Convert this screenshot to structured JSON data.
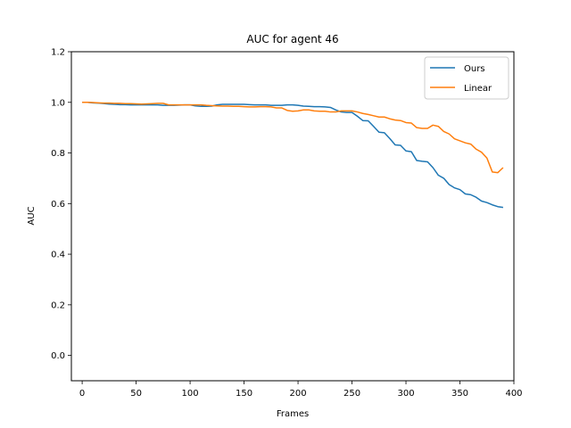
{
  "chart_data": {
    "type": "line",
    "title": "AUC for agent 46",
    "xlabel": "Frames",
    "ylabel": "AUC",
    "xlim": [
      -10,
      400
    ],
    "ylim": [
      -0.1,
      1.2
    ],
    "xticks": [
      0,
      50,
      100,
      150,
      200,
      250,
      300,
      350,
      400
    ],
    "yticks": [
      0.0,
      0.2,
      0.4,
      0.6,
      0.8,
      1.0,
      1.2
    ],
    "grid": false,
    "legend_position": "top-right",
    "x": [
      0,
      5,
      10,
      15,
      20,
      25,
      30,
      35,
      40,
      45,
      50,
      55,
      60,
      65,
      70,
      75,
      80,
      85,
      90,
      95,
      100,
      105,
      110,
      115,
      120,
      125,
      130,
      135,
      140,
      145,
      150,
      155,
      160,
      165,
      170,
      175,
      180,
      185,
      190,
      195,
      200,
      205,
      210,
      215,
      220,
      225,
      230,
      235,
      240,
      245,
      250,
      255,
      260,
      265,
      270,
      275,
      280,
      285,
      290,
      295,
      300,
      305,
      310,
      315,
      320,
      325,
      330,
      335,
      340,
      345,
      350,
      355,
      360,
      365,
      370,
      375,
      380,
      385,
      390
    ],
    "series": [
      {
        "name": "Ours",
        "color": "#1f77b4",
        "values": [
          1.0,
          1.0,
          0.998,
          0.997,
          0.995,
          0.993,
          0.992,
          0.991,
          0.991,
          0.99,
          0.99,
          0.99,
          0.99,
          0.99,
          0.99,
          0.988,
          0.988,
          0.988,
          0.989,
          0.99,
          0.99,
          0.986,
          0.984,
          0.984,
          0.985,
          0.99,
          0.992,
          0.992,
          0.992,
          0.992,
          0.992,
          0.991,
          0.99,
          0.99,
          0.99,
          0.988,
          0.988,
          0.988,
          0.99,
          0.99,
          0.988,
          0.985,
          0.984,
          0.983,
          0.983,
          0.982,
          0.98,
          0.97,
          0.962,
          0.96,
          0.96,
          0.945,
          0.928,
          0.927,
          0.905,
          0.882,
          0.88,
          0.857,
          0.832,
          0.83,
          0.808,
          0.805,
          0.77,
          0.767,
          0.765,
          0.742,
          0.712,
          0.7,
          0.675,
          0.662,
          0.655,
          0.638,
          0.635,
          0.625,
          0.61,
          0.604,
          0.595,
          0.588,
          0.585
        ]
      },
      {
        "name": "Linear",
        "color": "#ff7f0e",
        "values": [
          1.0,
          1.0,
          0.999,
          0.998,
          0.997,
          0.997,
          0.996,
          0.996,
          0.995,
          0.995,
          0.994,
          0.993,
          0.994,
          0.995,
          0.996,
          0.996,
          0.99,
          0.99,
          0.99,
          0.99,
          0.99,
          0.99,
          0.99,
          0.988,
          0.987,
          0.986,
          0.985,
          0.985,
          0.984,
          0.984,
          0.983,
          0.982,
          0.982,
          0.983,
          0.983,
          0.982,
          0.978,
          0.978,
          0.968,
          0.965,
          0.966,
          0.97,
          0.97,
          0.966,
          0.965,
          0.965,
          0.962,
          0.962,
          0.966,
          0.966,
          0.966,
          0.962,
          0.956,
          0.952,
          0.947,
          0.942,
          0.942,
          0.935,
          0.93,
          0.928,
          0.92,
          0.918,
          0.9,
          0.897,
          0.897,
          0.91,
          0.905,
          0.885,
          0.875,
          0.856,
          0.848,
          0.84,
          0.835,
          0.815,
          0.803,
          0.78,
          0.725,
          0.722,
          0.742
        ]
      }
    ]
  }
}
